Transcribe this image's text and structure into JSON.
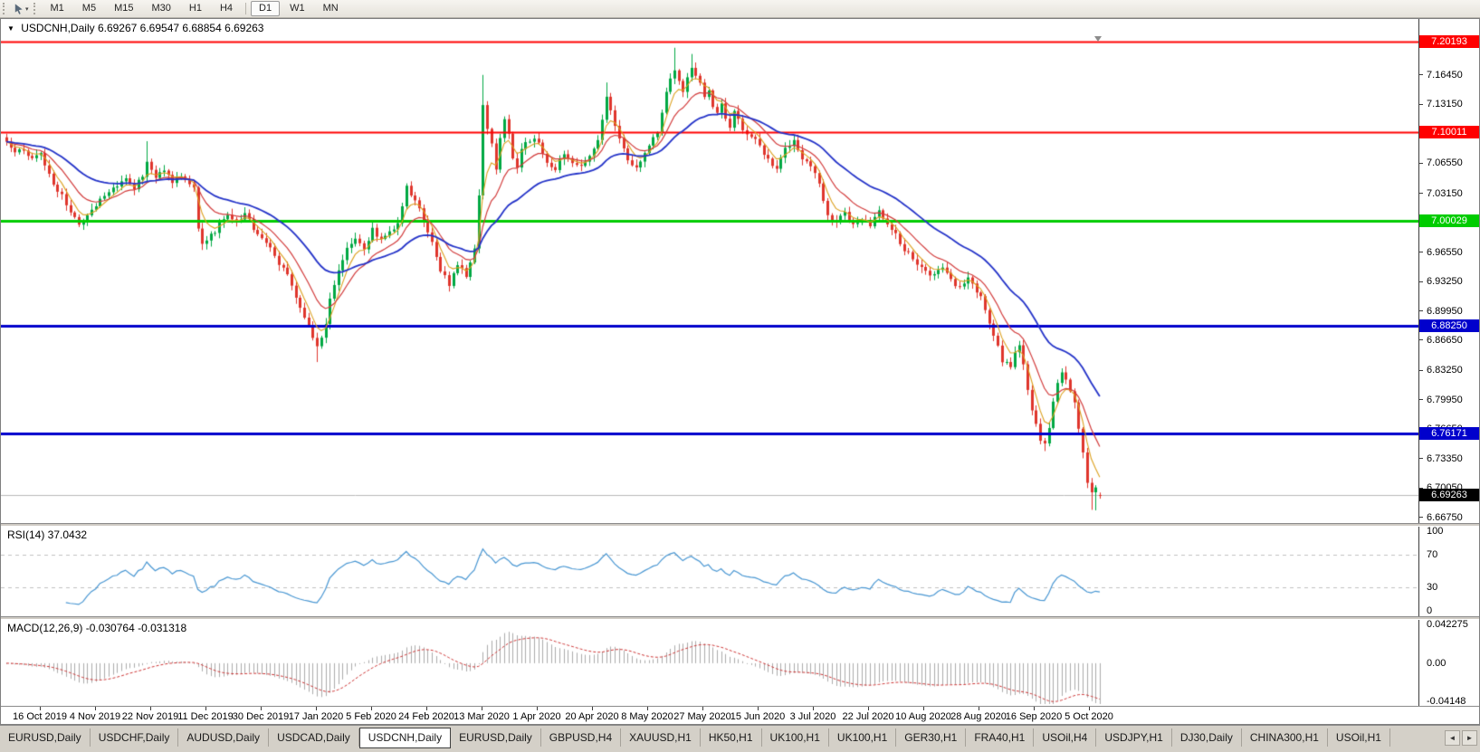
{
  "toolbar": {
    "timeframes": [
      "M1",
      "M5",
      "M15",
      "M30",
      "H1",
      "H4",
      "D1",
      "W1",
      "MN"
    ],
    "active_timeframe": "D1"
  },
  "icons": {
    "title_dropdown": "▼",
    "tool_caret": "▾",
    "tab_prev": "◄",
    "tab_next": "►"
  },
  "window": {
    "title_symbol": "USDCNH,Daily",
    "title_ohlc": "6.69267 6.69547 6.68854 6.69263"
  },
  "chart_data": {
    "type": "candlestick",
    "symbol": "USDCNH",
    "timeframe": "Daily",
    "ohlc": {
      "open": "6.69267",
      "high": "6.69547",
      "low": "6.68854",
      "close": "6.69263"
    },
    "y_range": [
      6.6612,
      7.21
    ],
    "y_ticks": [
      "7.19750",
      "7.16450",
      "7.13150",
      "7.09850",
      "7.06550",
      "7.03150",
      "6.99850",
      "6.96550",
      "6.93250",
      "6.89950",
      "6.86650",
      "6.83250",
      "6.79950",
      "6.76650",
      "6.73350",
      "6.70050",
      "6.66750"
    ],
    "x_labels": [
      "16 Oct 2019",
      "4 Nov 2019",
      "22 Nov 2019",
      "11 Dec 2019",
      "30 Dec 2019",
      "17 Jan 2020",
      "5 Feb 2020",
      "24 Feb 2020",
      "13 Mar 2020",
      "1 Apr 2020",
      "20 Apr 2020",
      "8 May 2020",
      "27 May 2020",
      "15 Jun 2020",
      "3 Jul 2020",
      "22 Jul 2020",
      "10 Aug 2020",
      "28 Aug 2020",
      "16 Sep 2020",
      "5 Oct 2020"
    ],
    "h_lines": [
      {
        "price": 7.20193,
        "label": "7.20193",
        "color": "#ff0000",
        "text_color": "#ffffff",
        "width": 2
      },
      {
        "price": 7.10011,
        "label": "7.10011",
        "color": "#ff0000",
        "text_color": "#ffffff",
        "width": 2
      },
      {
        "price": 7.00029,
        "label": "7.00029",
        "color": "#00cc00",
        "text_color": "#ffffff",
        "width": 3
      },
      {
        "price": 6.8825,
        "label": "6.88250",
        "color": "#0000cc",
        "text_color": "#ffffff",
        "width": 3
      },
      {
        "price": 6.76171,
        "label": "6.76171",
        "color": "#0000cc",
        "text_color": "#ffffff",
        "width": 3
      }
    ],
    "current_price": {
      "price": 6.69263,
      "label": "6.69263",
      "bg": "#000000",
      "text_color": "#ffffff",
      "line_color": "#b8b8b8"
    },
    "candle_up_color": "#00a843",
    "candle_down_color": "#df352c",
    "moving_averages": [
      {
        "name": "fast-ma",
        "period": 5,
        "color": "#dca01e",
        "width": 1.1
      },
      {
        "name": "medium-ma",
        "period": 12,
        "color": "#d23b3b",
        "width": 1.2
      },
      {
        "name": "slow-ma",
        "period": 30,
        "color": "#2433c8",
        "width": 1.8
      }
    ],
    "price_path": [
      [
        0,
        7.09
      ],
      [
        2,
        7.075
      ],
      [
        4,
        7.082
      ],
      [
        6,
        7.068
      ],
      [
        8,
        7.076
      ],
      [
        10,
        7.052
      ],
      [
        13,
        7.028
      ],
      [
        15,
        7.012
      ],
      [
        17,
        6.998
      ],
      [
        19,
        7.006
      ],
      [
        22,
        7.024
      ],
      [
        25,
        7.038
      ],
      [
        28,
        7.046
      ],
      [
        30,
        7.036
      ],
      [
        32,
        7.052
      ],
      [
        33,
        7.068
      ],
      [
        35,
        7.05
      ],
      [
        37,
        7.058
      ],
      [
        39,
        7.046
      ],
      [
        41,
        7.052
      ],
      [
        43,
        7.044
      ],
      [
        44,
        7.038
      ],
      [
        45,
        6.99
      ],
      [
        46,
        6.976
      ],
      [
        48,
        6.984
      ],
      [
        50,
        6.996
      ],
      [
        52,
        7.006
      ],
      [
        54,
        6.998
      ],
      [
        56,
        7.008
      ],
      [
        58,
        6.992
      ],
      [
        60,
        6.982
      ],
      [
        62,
        6.968
      ],
      [
        64,
        6.954
      ],
      [
        66,
        6.938
      ],
      [
        68,
        6.916
      ],
      [
        70,
        6.893
      ],
      [
        72,
        6.87
      ],
      [
        73,
        6.861
      ],
      [
        74,
        6.868
      ],
      [
        75,
        6.884
      ],
      [
        76,
        6.912
      ],
      [
        78,
        6.946
      ],
      [
        80,
        6.972
      ],
      [
        82,
        6.982
      ],
      [
        84,
        6.968
      ],
      [
        86,
        6.992
      ],
      [
        88,
        6.978
      ],
      [
        90,
        6.988
      ],
      [
        92,
        6.998
      ],
      [
        94,
        7.038
      ],
      [
        96,
        7.026
      ],
      [
        98,
        7.002
      ],
      [
        100,
        6.974
      ],
      [
        102,
        6.944
      ],
      [
        104,
        6.93
      ],
      [
        106,
        6.952
      ],
      [
        108,
        6.94
      ],
      [
        110,
        6.968
      ],
      [
        111,
        7.032
      ],
      [
        112,
        7.128
      ],
      [
        113,
        7.106
      ],
      [
        114,
        7.086
      ],
      [
        115,
        7.058
      ],
      [
        116,
        7.092
      ],
      [
        117,
        7.116
      ],
      [
        118,
        7.096
      ],
      [
        119,
        7.072
      ],
      [
        120,
        7.058
      ],
      [
        121,
        7.08
      ],
      [
        123,
        7.092
      ],
      [
        125,
        7.088
      ],
      [
        127,
        7.068
      ],
      [
        129,
        7.058
      ],
      [
        131,
        7.078
      ],
      [
        133,
        7.068
      ],
      [
        135,
        7.06
      ],
      [
        137,
        7.072
      ],
      [
        139,
        7.094
      ],
      [
        140,
        7.116
      ],
      [
        141,
        7.14
      ],
      [
        142,
        7.126
      ],
      [
        143,
        7.11
      ],
      [
        144,
        7.096
      ],
      [
        146,
        7.07
      ],
      [
        148,
        7.06
      ],
      [
        150,
        7.076
      ],
      [
        151,
        7.084
      ],
      [
        153,
        7.1
      ],
      [
        155,
        7.146
      ],
      [
        156,
        7.16
      ],
      [
        157,
        7.17
      ],
      [
        158,
        7.156
      ],
      [
        159,
        7.146
      ],
      [
        160,
        7.16
      ],
      [
        161,
        7.17
      ],
      [
        162,
        7.163
      ],
      [
        163,
        7.156
      ],
      [
        164,
        7.14
      ],
      [
        165,
        7.15
      ],
      [
        166,
        7.13
      ],
      [
        167,
        7.12
      ],
      [
        168,
        7.13
      ],
      [
        169,
        7.116
      ],
      [
        170,
        7.106
      ],
      [
        171,
        7.126
      ],
      [
        172,
        7.113
      ],
      [
        174,
        7.096
      ],
      [
        176,
        7.09
      ],
      [
        177,
        7.084
      ],
      [
        179,
        7.07
      ],
      [
        181,
        7.06
      ],
      [
        183,
        7.08
      ],
      [
        185,
        7.09
      ],
      [
        187,
        7.07
      ],
      [
        189,
        7.064
      ],
      [
        191,
        7.044
      ],
      [
        192,
        7.026
      ],
      [
        193,
        7.008
      ],
      [
        195,
        6.999
      ],
      [
        197,
        7.01
      ],
      [
        199,
        6.994
      ],
      [
        201,
        7.004
      ],
      [
        203,
        6.994
      ],
      [
        205,
        7.01
      ],
      [
        207,
        6.998
      ],
      [
        209,
        6.984
      ],
      [
        211,
        6.968
      ],
      [
        213,
        6.958
      ],
      [
        216,
        6.944
      ],
      [
        218,
        6.938
      ],
      [
        220,
        6.95
      ],
      [
        222,
        6.934
      ],
      [
        224,
        6.926
      ],
      [
        226,
        6.938
      ],
      [
        228,
        6.922
      ],
      [
        229,
        6.914
      ],
      [
        231,
        6.886
      ],
      [
        233,
        6.86
      ],
      [
        234,
        6.844
      ],
      [
        236,
        6.836
      ],
      [
        237,
        6.852
      ],
      [
        238,
        6.86
      ],
      [
        239,
        6.838
      ],
      [
        240,
        6.812
      ],
      [
        241,
        6.786
      ],
      [
        242,
        6.77
      ],
      [
        243,
        6.755
      ],
      [
        244,
        6.749
      ],
      [
        245,
        6.768
      ],
      [
        246,
        6.796
      ],
      [
        247,
        6.818
      ],
      [
        248,
        6.83
      ],
      [
        249,
        6.821
      ],
      [
        250,
        6.809
      ],
      [
        251,
        6.794
      ],
      [
        252,
        6.768
      ],
      [
        253,
        6.738
      ],
      [
        254,
        6.708
      ],
      [
        255,
        6.694
      ],
      [
        256,
        6.7
      ],
      [
        257,
        6.6926
      ]
    ],
    "spikes": [
      {
        "i": 33,
        "high": 7.09
      },
      {
        "i": 73,
        "low": 6.842
      },
      {
        "i": 112,
        "high": 7.1645
      },
      {
        "i": 141,
        "high": 7.156
      },
      {
        "i": 157,
        "high": 7.195
      },
      {
        "i": 161,
        "high": 7.188
      },
      {
        "i": 244,
        "low": 6.742
      },
      {
        "i": 255,
        "low": 6.676
      },
      {
        "i": 256,
        "low": 6.6755
      }
    ],
    "last_bar": [
      6.69267,
      6.69547,
      6.68854,
      6.69263
    ],
    "indicators": {
      "rsi": {
        "label": "RSI(14) 37.0432",
        "period": 14,
        "levels": [
          70,
          30
        ],
        "scale_labels": [
          "100",
          "70",
          "30",
          "0"
        ],
        "scale_values": [
          100,
          70,
          30,
          0
        ],
        "color": "#4896d2",
        "range": [
          0,
          100
        ]
      },
      "macd": {
        "label": "MACD(12,26,9) -0.030764 -0.031318",
        "fast": 12,
        "slow": 26,
        "signal": 9,
        "scale_labels": [
          "0.042275",
          "0.00",
          "-0.04148"
        ],
        "scale_values": [
          0.042275,
          0,
          -0.04148
        ],
        "bar_color": "#ababab",
        "signal_color": "#cc3333"
      }
    }
  },
  "tab_bar": {
    "items": [
      "EURUSD,Daily",
      "USDCHF,Daily",
      "AUDUSD,Daily",
      "USDCAD,Daily",
      "USDCNH,Daily",
      "EURUSD,Daily",
      "GBPUSD,H4",
      "XAUUSD,H1",
      "HK50,H1",
      "UK100,H1",
      "UK100,H1",
      "GER30,H1",
      "FRA40,H1",
      "USOil,H4",
      "USDJPY,H1",
      "DJ30,Daily",
      "CHINA300,H1",
      "USOil,H1"
    ],
    "active_index": 4
  }
}
